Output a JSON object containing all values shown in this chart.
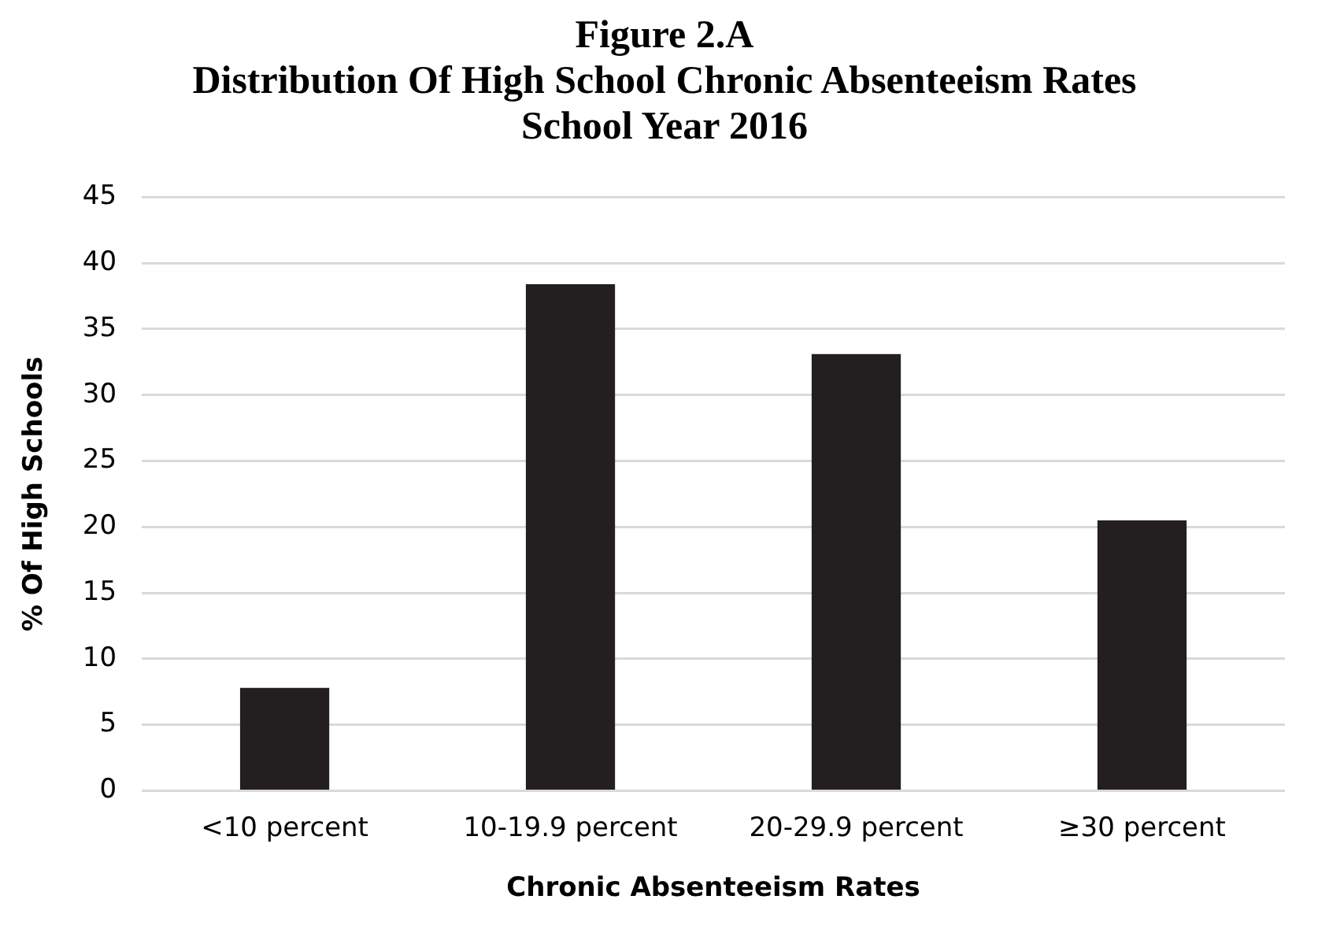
{
  "chart_data": {
    "type": "bar",
    "title": "Figure 2.A\nDistribution Of High School Chronic Absenteeism Rates\nSchool Year 2016",
    "categories": [
      "<10 percent",
      "10-19.9 percent",
      "20-29.9 percent",
      "≥30 percent"
    ],
    "values": [
      7.8,
      38.4,
      33.1,
      20.5
    ],
    "color": "#231f20",
    "xlabel": "Chronic Absenteeism Rates",
    "ylabel": "% Of High Schools",
    "ylim": [
      0,
      45
    ],
    "yticks": [
      0,
      5,
      10,
      15,
      20,
      25,
      30,
      35,
      40,
      45
    ],
    "grid": "y"
  }
}
